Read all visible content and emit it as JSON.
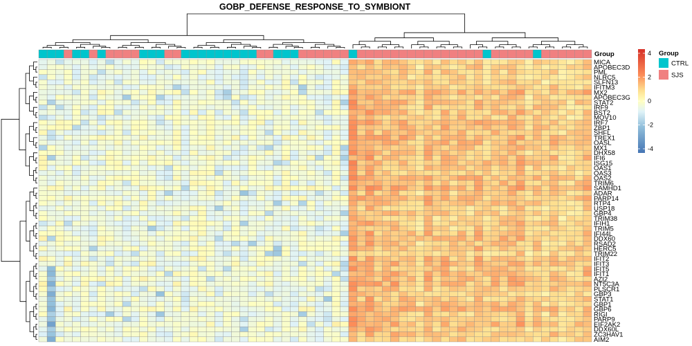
{
  "chart_data": {
    "type": "heatmap",
    "title": "GOBP_DEFENSE_RESPONSE_TO_SYMBIONT",
    "annotation_label": "Group",
    "genes": [
      "MICA",
      "APOBEC3D",
      "PML",
      "NLRC5",
      "SLFN13",
      "IFITM3",
      "MX2",
      "APOBEC3G",
      "STAT2",
      "IRF9",
      "BST2",
      "MOV10",
      "IRF7",
      "ZBP1",
      "SHFL",
      "TREX1",
      "OASL",
      "MX1",
      "DHX58",
      "IFI6",
      "ISG15",
      "OAS1",
      "OAS3",
      "OAS2",
      "TRIM6",
      "SAMHD1",
      "ADAR",
      "PARP14",
      "RTP4",
      "USP18",
      "GBP4",
      "TRIM38",
      "IFIH1",
      "TRIM5",
      "IFI44L",
      "DDX60",
      "RSAD2",
      "HERC5",
      "TRIM22",
      "IFIT2",
      "IFIT3",
      "IFIT5",
      "IFIT1",
      "AZI2",
      "NT5C3A",
      "PLSCR1",
      "GBP3",
      "STAT1",
      "GBP1",
      "GBP6",
      "RIGI",
      "PARP9",
      "EIF2AK2",
      "DDX60L",
      "ZC3HAV1",
      "AIM2"
    ],
    "column_groups": [
      "CTRL",
      "CTRL",
      "CTRL",
      "SJS",
      "CTRL",
      "CTRL",
      "SJS",
      "CTRL",
      "SJS",
      "SJS",
      "SJS",
      "SJS",
      "CTRL",
      "CTRL",
      "CTRL",
      "SJS",
      "SJS",
      "CTRL",
      "CTRL",
      "CTRL",
      "CTRL",
      "CTRL",
      "CTRL",
      "CTRL",
      "CTRL",
      "CTRL",
      "SJS",
      "SJS",
      "CTRL",
      "CTRL",
      "CTRL",
      "SJS",
      "SJS",
      "SJS",
      "SJS",
      "SJS",
      "SJS",
      "CTRL",
      "SJS",
      "SJS",
      "SJS",
      "SJS",
      "SJS",
      "SJS",
      "SJS",
      "SJS",
      "SJS",
      "SJS",
      "SJS",
      "SJS",
      "SJS",
      "SJS",
      "SJS",
      "CTRL",
      "SJS",
      "SJS",
      "SJS",
      "SJS",
      "SJS",
      "CTRL",
      "SJS",
      "SJS",
      "SJS",
      "SJS",
      "SJS",
      "SJS"
    ],
    "legend": {
      "title": "Group",
      "entries": [
        {
          "name": "CTRL",
          "color": "#00C5CD"
        },
        {
          "name": "SJS",
          "color": "#F08080"
        }
      ]
    },
    "color_scale": {
      "range": [
        -4,
        4
      ],
      "ticks": [
        4,
        2,
        0,
        -2,
        -4
      ],
      "low": "#4575B4",
      "mid": "#FFFFBF",
      "high": "#D73027"
    }
  }
}
